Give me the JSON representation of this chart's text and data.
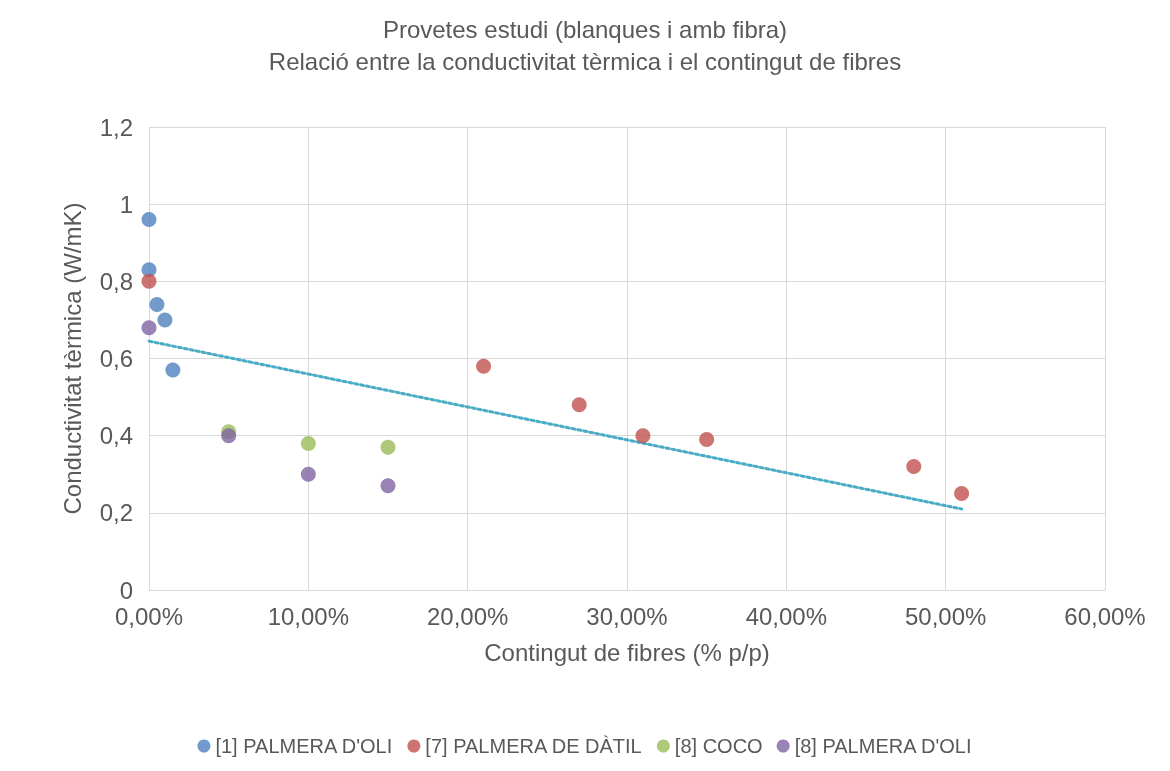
{
  "chart_data": {
    "type": "scatter",
    "title": "Provetes estudi (blanques i amb fibra)",
    "subtitle": "Relació entre la conductivitat tèrmica i el contingut de fibres",
    "xlabel": "Contingut de fibres (% p/p)",
    "ylabel": "Conductivitat tèrmica (W/mK)",
    "xlim": [
      0,
      60
    ],
    "xticks": [
      {
        "value": 0,
        "label": "0,00%"
      },
      {
        "value": 10,
        "label": "10,00%"
      },
      {
        "value": 20,
        "label": "20,00%"
      },
      {
        "value": 30,
        "label": "30,00%"
      },
      {
        "value": 40,
        "label": "40,00%"
      },
      {
        "value": 50,
        "label": "50,00%"
      },
      {
        "value": 60,
        "label": "60,00%"
      }
    ],
    "ylim": [
      0,
      1.2
    ],
    "yticks": [
      0,
      {
        "value": 0.2,
        "label": "0,2"
      },
      {
        "value": 0.4,
        "label": "0,4"
      },
      {
        "value": 0.6,
        "label": "0,6"
      },
      {
        "value": 0.8,
        "label": "0,8"
      },
      1,
      {
        "value": 1.2,
        "label": "1,2"
      }
    ],
    "grid": true,
    "legend": "bottom",
    "marker": "circle",
    "series": [
      {
        "name": "[1] PALMERA D'OLI",
        "color": "#4f81bd",
        "x": [
          0,
          0,
          0.5,
          1,
          1.5
        ],
        "values": [
          0.96,
          0.83,
          0.74,
          0.7,
          0.57
        ]
      },
      {
        "name": "[7] PALMERA DE DÀTIL",
        "color": "#c0504d",
        "x": [
          0,
          21,
          27,
          31,
          35,
          48,
          51
        ],
        "values": [
          0.8,
          0.58,
          0.48,
          0.4,
          0.39,
          0.32,
          0.25
        ]
      },
      {
        "name": "[8] COCO",
        "color": "#9bbb59",
        "x": [
          5,
          10,
          15
        ],
        "values": [
          0.41,
          0.38,
          0.37
        ]
      },
      {
        "name": "[8] PALMERA D'OLI",
        "color": "#8064a2",
        "x": [
          0,
          5,
          10,
          15
        ],
        "values": [
          0.68,
          0.4,
          0.3,
          0.27
        ]
      },
      {
        "type": "line",
        "color": "#4bacc6",
        "line_style": "dotted",
        "marker": "none",
        "x": [
          0,
          51
        ],
        "values": [
          0.645,
          0.21
        ]
      }
    ]
  }
}
